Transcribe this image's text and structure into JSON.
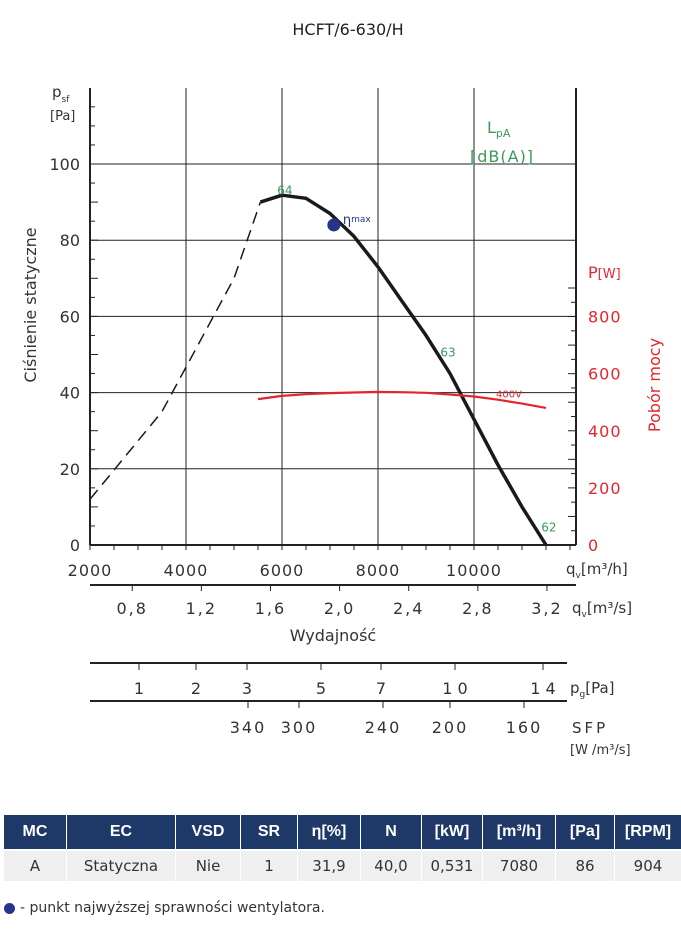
{
  "chart_data": {
    "type": "line",
    "title": "HCFT/6-630/H",
    "y_axis": {
      "label": "Ciśnienie statyczne",
      "symbol": "p",
      "symbol_sub": "sf",
      "unit": "[Pa]",
      "range": [
        0,
        100
      ],
      "ticks": [
        "0",
        "20",
        "40",
        "60",
        "80",
        "100"
      ]
    },
    "x_axis": {
      "symbol": "q",
      "symbol_sub": "v",
      "unit": "[m³/h]",
      "range": [
        2000,
        12000
      ],
      "ticks": [
        "2000",
        "4000",
        "6000",
        "8000",
        "10000"
      ]
    },
    "x2_axis": {
      "symbol": "q",
      "symbol_sub": "v",
      "unit": "[m³/s]",
      "label": "Wydajność",
      "ticks": [
        "0,8",
        "1,2",
        "1,6",
        "2,0",
        "2,4",
        "2,8",
        "3,2"
      ]
    },
    "power_axis": {
      "label": "Pobór mocy",
      "symbol": "P",
      "unit": "[W]",
      "range": [
        0,
        900
      ],
      "ticks": [
        "0",
        "200",
        "400",
        "600",
        "800"
      ]
    },
    "noise_legend": {
      "symbol": "L",
      "symbol_sub": "pA",
      "unit": "[dB(A)]"
    },
    "series": [
      {
        "name": "pressure",
        "color": "#1a1a1a",
        "dashed_points": [
          [
            2000,
            12
          ],
          [
            3500,
            35
          ],
          [
            5000,
            70
          ],
          [
            5550,
            90
          ]
        ],
        "solid_points": [
          [
            5550,
            90
          ],
          [
            6000,
            91.8
          ],
          [
            6500,
            91
          ],
          [
            7000,
            87
          ],
          [
            7500,
            81
          ],
          [
            8000,
            73
          ],
          [
            8500,
            64
          ],
          [
            9000,
            55
          ],
          [
            9500,
            45
          ],
          [
            10000,
            33
          ],
          [
            10500,
            21
          ],
          [
            11000,
            10
          ],
          [
            11500,
            0
          ]
        ]
      },
      {
        "name": "400V",
        "color": "#e3262b",
        "points": [
          [
            5500,
            511
          ],
          [
            6000,
            522
          ],
          [
            6500,
            528
          ],
          [
            7000,
            532
          ],
          [
            7500,
            534
          ],
          [
            8000,
            536
          ],
          [
            8500,
            535
          ],
          [
            9000,
            533
          ],
          [
            9500,
            527
          ],
          [
            10000,
            520
          ],
          [
            10500,
            509
          ],
          [
            11000,
            495
          ],
          [
            11500,
            480
          ]
        ]
      }
    ],
    "annotations": [
      {
        "text": "64",
        "x": 5900,
        "y": 92,
        "color": "#3a9a5a"
      },
      {
        "text": "63",
        "x": 9300,
        "y": 49.5,
        "color": "#3a9a5a"
      },
      {
        "text": "62",
        "x": 11400,
        "y": 3.5,
        "color": "#3a9a5a"
      }
    ],
    "eta_max": {
      "label": "η",
      "label_sub": "max",
      "x": 7080,
      "y": 84,
      "color": "#27348b"
    },
    "grid": true
  },
  "pressure_scale": {
    "label": "p",
    "label_sub": "g",
    "unit": "[Pa]",
    "ticks": [
      "1",
      "2",
      "3",
      "5",
      "7",
      "1 0",
      "1 4"
    ]
  },
  "sfp_scale": {
    "label": "SFP",
    "unit": "[W /m³/s]",
    "ticks": [
      "340",
      "300",
      "240",
      "200",
      "160"
    ]
  },
  "table": {
    "headers": [
      "MC",
      "EC",
      "VSD",
      "SR",
      "η[%]",
      "N",
      "[kW]",
      "[m³/h]",
      "[Pa]",
      "[RPM]"
    ],
    "row": [
      "A",
      "Statyczna",
      "Nie",
      "1",
      "31,9",
      "40,0",
      "0,531",
      "7080",
      "86",
      "904"
    ]
  },
  "footnote": "- punkt najwyższej sprawności wentylatora."
}
